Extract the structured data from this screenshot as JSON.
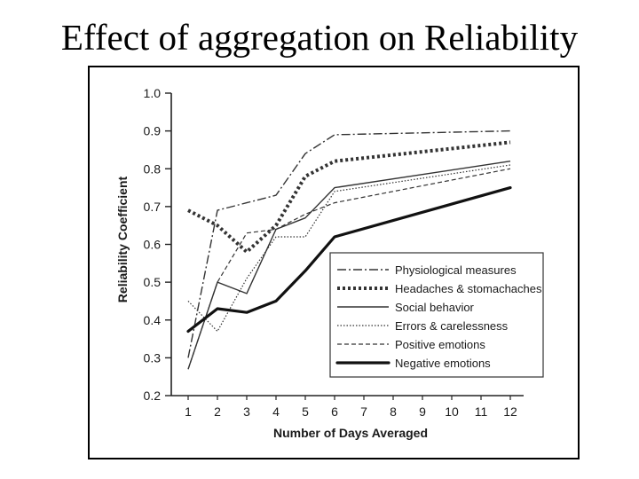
{
  "slide": {
    "title": "Effect of aggregation on Reliability"
  },
  "chart_data": {
    "type": "line",
    "title": "",
    "xlabel": "Number of Days Averaged",
    "ylabel": "Reliability Coefficient",
    "x": [
      1,
      2,
      3,
      4,
      5,
      6,
      7,
      8,
      9,
      10,
      11,
      12
    ],
    "x_ticks": [
      "1",
      "2",
      "3",
      "4",
      "5",
      "6",
      "7",
      "8",
      "9",
      "10",
      "11",
      "12"
    ],
    "y_ticks": [
      "0.2",
      "0.3",
      "0.4",
      "0.5",
      "0.6",
      "0.7",
      "0.8",
      "0.9",
      "1.0"
    ],
    "ylim": [
      0.2,
      1.0
    ],
    "grid": false,
    "legend_position": "bottom-right",
    "series": [
      {
        "name": "Physiological measures",
        "style": "dash-dot",
        "color": "#333333",
        "points": [
          [
            1,
            0.3
          ],
          [
            2,
            0.69
          ],
          [
            3,
            0.71
          ],
          [
            4,
            0.73
          ],
          [
            5,
            0.84
          ],
          [
            6,
            0.89
          ],
          [
            12,
            0.9
          ]
        ]
      },
      {
        "name": "Headaches & stomachaches",
        "style": "heavy-dotted",
        "color": "#333333",
        "points": [
          [
            1,
            0.69
          ],
          [
            2,
            0.65
          ],
          [
            3,
            0.58
          ],
          [
            4,
            0.65
          ],
          [
            5,
            0.78
          ],
          [
            6,
            0.82
          ],
          [
            12,
            0.87
          ]
        ]
      },
      {
        "name": "Social behavior",
        "style": "solid",
        "color": "#333333",
        "points": [
          [
            1,
            0.27
          ],
          [
            2,
            0.5
          ],
          [
            3,
            0.47
          ],
          [
            4,
            0.64
          ],
          [
            5,
            0.67
          ],
          [
            6,
            0.75
          ],
          [
            12,
            0.82
          ]
        ]
      },
      {
        "name": "Errors & carelessness",
        "style": "dotted",
        "color": "#333333",
        "points": [
          [
            1,
            0.45
          ],
          [
            2,
            0.37
          ],
          [
            3,
            0.51
          ],
          [
            4,
            0.62
          ],
          [
            5,
            0.62
          ],
          [
            6,
            0.74
          ],
          [
            12,
            0.81
          ]
        ]
      },
      {
        "name": "Positive emotions",
        "style": "dashed",
        "color": "#333333",
        "points": [
          [
            1,
            0.27
          ],
          [
            2,
            0.5
          ],
          [
            3,
            0.63
          ],
          [
            4,
            0.64
          ],
          [
            5,
            0.68
          ],
          [
            6,
            0.71
          ],
          [
            12,
            0.8
          ]
        ]
      },
      {
        "name": "Negative emotions",
        "style": "heavy-solid",
        "color": "#111111",
        "points": [
          [
            1,
            0.37
          ],
          [
            2,
            0.43
          ],
          [
            3,
            0.42
          ],
          [
            4,
            0.45
          ],
          [
            5,
            0.53
          ],
          [
            6,
            0.62
          ],
          [
            12,
            0.75
          ]
        ]
      }
    ]
  }
}
